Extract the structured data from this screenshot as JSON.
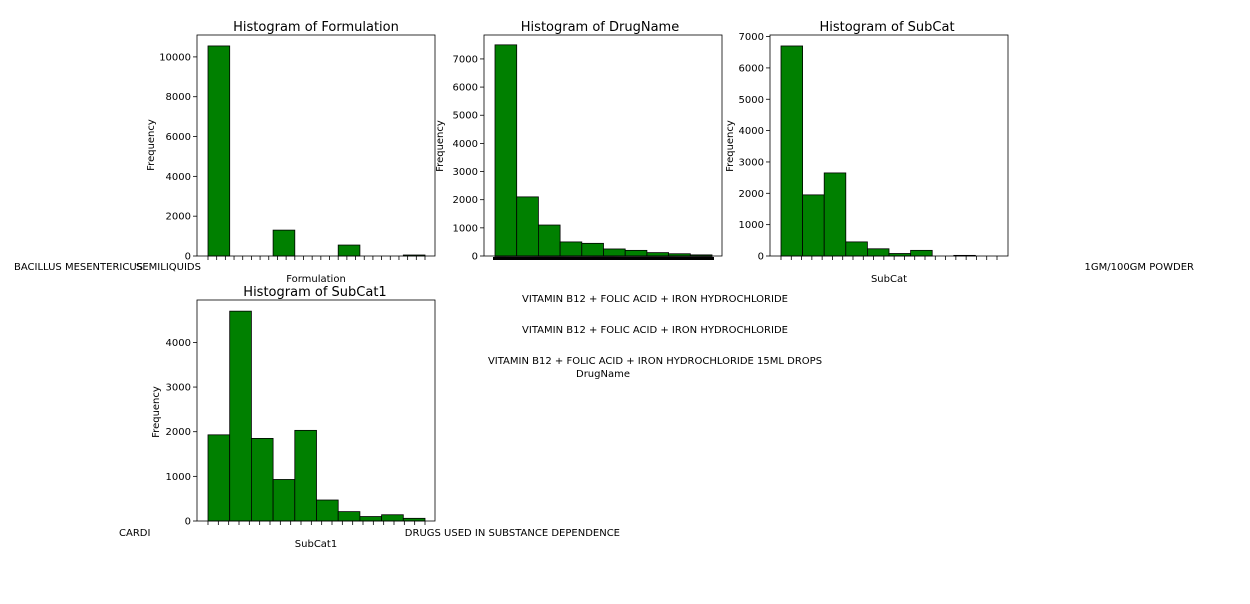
{
  "chart_data": [
    {
      "type": "bar",
      "title": "Histogram of Formulation",
      "xlabel": "Formulation",
      "ylabel": "Frequency",
      "ylim": [
        0,
        11100
      ],
      "yticks": [
        0,
        2000,
        4000,
        6000,
        8000,
        10000
      ],
      "values": [
        10550,
        0,
        0,
        1300,
        0,
        0,
        550,
        0,
        0,
        50
      ],
      "bar_color": "#008000",
      "grid": false,
      "x_tick_text_left": "BACILLUS MESENTERICUS",
      "x_tick_text_right": "SEMILIQUIDS"
    },
    {
      "type": "bar",
      "title": "Histogram of DrugName",
      "xlabel": "DrugName",
      "ylabel": "Frequency",
      "ylim": [
        0,
        7850
      ],
      "yticks": [
        0,
        1000,
        2000,
        3000,
        4000,
        5000,
        6000,
        7000
      ],
      "values": [
        7500,
        2100,
        1100,
        500,
        450,
        250,
        200,
        120,
        80,
        40
      ],
      "bar_color": "#008000",
      "grid": false,
      "x_tick_overflow_lines": [
        "VITAMIN B12 + FOLIC ACID + IRON HYDROCHLORIDE",
        "VITAMIN B12 + FOLIC ACID + IRON HYDROCHLORIDE",
        "VITAMIN B12 + FOLIC ACID + IRON HYDROCHLORIDE 15ML DROPS"
      ]
    },
    {
      "type": "bar",
      "title": "Histogram of SubCat",
      "xlabel": "SubCat",
      "ylabel": "Frequency",
      "ylim": [
        0,
        7050
      ],
      "yticks": [
        0,
        1000,
        2000,
        3000,
        4000,
        5000,
        6000,
        7000
      ],
      "values": [
        6700,
        1950,
        2650,
        450,
        230,
        80,
        180,
        0,
        20,
        0
      ],
      "bar_color": "#008000",
      "grid": false,
      "x_tick_text_right": "1GM/100GM POWDER"
    },
    {
      "type": "bar",
      "title": "Histogram of SubCat1",
      "xlabel": "SubCat1",
      "ylabel": "Frequency",
      "ylim": [
        0,
        4950
      ],
      "yticks": [
        0,
        1000,
        2000,
        3000,
        4000
      ],
      "values": [
        1930,
        4700,
        1850,
        930,
        2030,
        470,
        210,
        100,
        140,
        60
      ],
      "bar_color": "#008000",
      "grid": false,
      "x_tick_text_left": "CARDI",
      "x_tick_text_right": "DRUGS USED IN SUBSTANCE DEPENDENCE"
    }
  ]
}
